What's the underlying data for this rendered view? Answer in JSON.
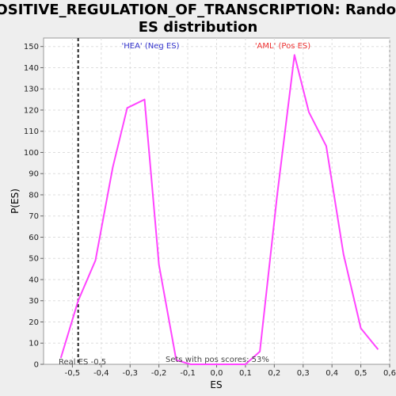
{
  "chart_data": {
    "type": "line",
    "title": "POSITIVE_REGULATION_OF_TRANSCRIPTION: Random ES distribution",
    "title_lines": [
      "POSITIVE_REGULATION_OF_TRANSCRIPTION: Random",
      "ES distribution"
    ],
    "xlabel": "ES",
    "ylabel": "P(ES)",
    "xlim": [
      -0.6,
      0.6
    ],
    "ylim": [
      0,
      154
    ],
    "x_ticks": [
      -0.5,
      -0.4,
      -0.3,
      -0.2,
      -0.1,
      0.0,
      0.1,
      0.2,
      0.3,
      0.4,
      0.5,
      0.6
    ],
    "x_tick_labels": [
      "-0,5",
      "-0,4",
      "-0,3",
      "-0,2",
      "-0,1",
      "0,0",
      "0,1",
      "0,2",
      "0,3",
      "0,4",
      "0,5",
      "0,6"
    ],
    "y_ticks": [
      0,
      10,
      20,
      30,
      40,
      50,
      60,
      70,
      80,
      90,
      100,
      110,
      120,
      130,
      140,
      150
    ],
    "grid": true,
    "series": [
      {
        "color": "#ff44ff",
        "x": [
          -0.54,
          -0.48,
          -0.42,
          -0.36,
          -0.31,
          -0.25,
          -0.2,
          -0.14,
          -0.09,
          0.1,
          0.15,
          0.21,
          0.27,
          0.32,
          0.38,
          0.44,
          0.5,
          0.56
        ],
        "y": [
          3,
          30,
          49,
          93,
          121,
          125,
          47,
          2,
          0,
          0,
          6,
          80,
          146,
          119,
          103,
          52,
          17,
          7
        ]
      }
    ],
    "real_es": -0.48,
    "annotations": {
      "neg_label": "'HEA' (Neg ES)",
      "neg_color": "#3333cc",
      "pos_label": "'AML' (Pos ES)",
      "pos_color": "#ee3333",
      "real_es_label": "Real ES -0,5",
      "pos_scores_label": "Sets with pos scores: 53%"
    }
  }
}
